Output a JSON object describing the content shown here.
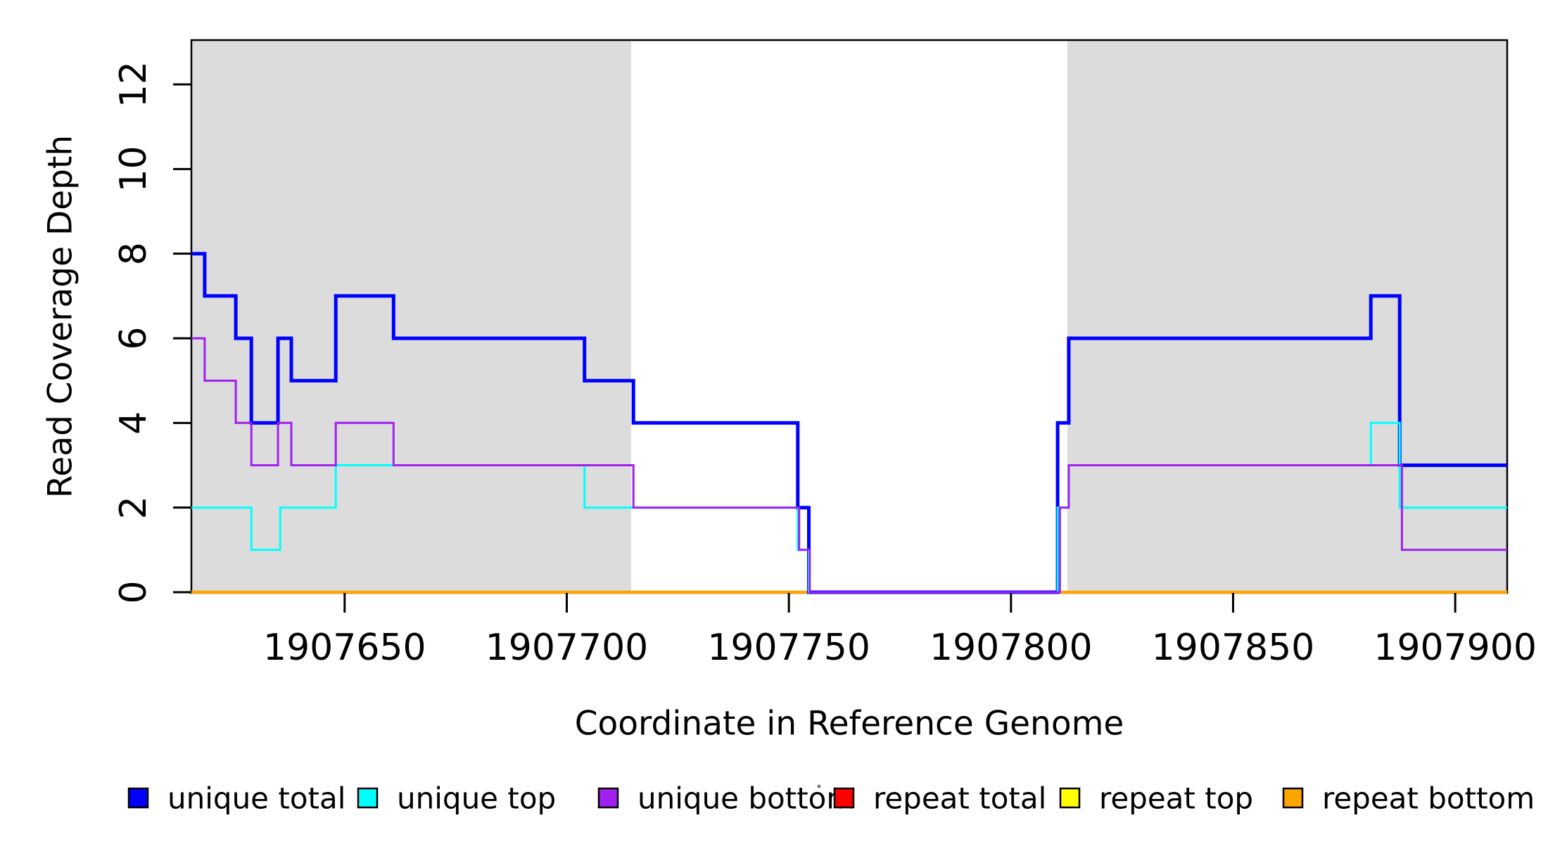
{
  "chart_data": {
    "type": "line",
    "subtype": "step",
    "title": "",
    "xlabel": "Coordinate in Reference Genome",
    "ylabel": "Read Coverage Depth",
    "xlim": [
      1907615.5,
      1907911.7
    ],
    "ylim": [
      0,
      13
    ],
    "x_ticks": [
      1907650,
      1907700,
      1907750,
      1907800,
      1907850,
      1907900
    ],
    "x_tick_labels": [
      "1907650",
      "1907700",
      "1907750",
      "1907800",
      "1907850",
      "1907900"
    ],
    "y_ticks": [
      0,
      2,
      4,
      6,
      8,
      10,
      12
    ],
    "y_tick_labels": [
      "0",
      "2",
      "4",
      "6",
      "8",
      "10",
      "12"
    ],
    "grid": false,
    "legend_position": "bottom",
    "shade_color": "#DCDCDC",
    "background_shaded_regions_x": [
      [
        1907615.5,
        1907714.5
      ],
      [
        1907812.7,
        1907911.7
      ]
    ],
    "series": [
      {
        "name": "unique total",
        "color": "#0000FF",
        "line_width": 5,
        "steps": [
          [
            1907615.5,
            8
          ],
          [
            1907618.5,
            7
          ],
          [
            1907625.5,
            6
          ],
          [
            1907629,
            4
          ],
          [
            1907635,
            6
          ],
          [
            1907638,
            5
          ],
          [
            1907648,
            7
          ],
          [
            1907661,
            6
          ],
          [
            1907704,
            5
          ],
          [
            1907715,
            4
          ],
          [
            1907752,
            2
          ],
          [
            1907754.5,
            0
          ],
          [
            1907810.5,
            4
          ],
          [
            1907813,
            6
          ],
          [
            1907881,
            7
          ],
          [
            1907887.5,
            3
          ]
        ]
      },
      {
        "name": "unique top",
        "color": "#00FFFF",
        "line_width": 3,
        "steps": [
          [
            1907615.5,
            2
          ],
          [
            1907629,
            1
          ],
          [
            1907635.5,
            2
          ],
          [
            1907648,
            3
          ],
          [
            1907704,
            2
          ],
          [
            1907752,
            1
          ],
          [
            1907754.5,
            0
          ],
          [
            1907810.5,
            2
          ],
          [
            1907813,
            3
          ],
          [
            1907881,
            4
          ],
          [
            1907887.5,
            2
          ]
        ]
      },
      {
        "name": "unique bottom",
        "color": "#A020F0",
        "line_width": 3,
        "steps": [
          [
            1907615.5,
            6
          ],
          [
            1907618.5,
            5
          ],
          [
            1907625.5,
            4
          ],
          [
            1907629,
            3
          ],
          [
            1907635,
            4
          ],
          [
            1907638,
            3
          ],
          [
            1907648,
            4
          ],
          [
            1907661,
            3
          ],
          [
            1907715,
            2
          ],
          [
            1907752.3,
            1
          ],
          [
            1907754.7,
            0
          ],
          [
            1907811,
            2
          ],
          [
            1907813,
            3
          ],
          [
            1907888,
            1
          ]
        ]
      },
      {
        "name": "repeat total",
        "color": "#FF0000",
        "line_width": 3,
        "steps": [
          [
            1907615.5,
            0
          ]
        ]
      },
      {
        "name": "repeat top",
        "color": "#FFFF00",
        "line_width": 3,
        "steps": [
          [
            1907615.5,
            0
          ]
        ]
      },
      {
        "name": "repeat bottom",
        "color": "#FFA500",
        "line_width": 4.5,
        "steps": [
          [
            1907615.5,
            0
          ]
        ]
      }
    ],
    "draw_order": [
      "repeat total",
      "repeat top",
      "repeat bottom",
      "unique total",
      "unique top",
      "unique bottom"
    ]
  }
}
